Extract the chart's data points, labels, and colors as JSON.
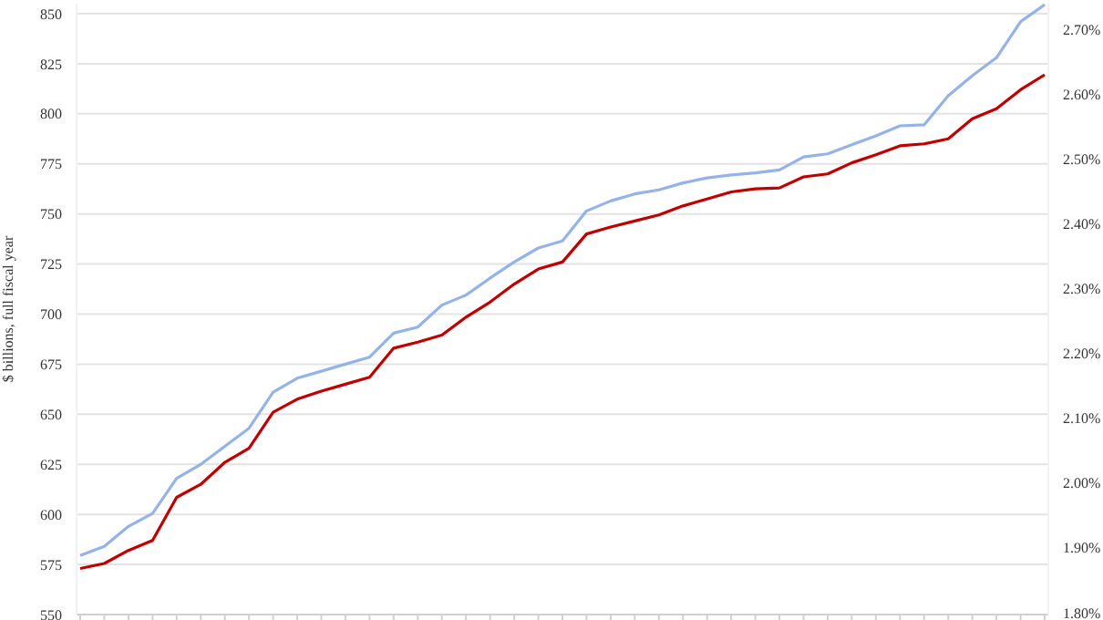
{
  "chart_data": {
    "type": "line",
    "ylabel": "$ billions, full fiscal year",
    "categories": [
      null,
      null,
      null,
      null,
      null,
      null,
      null,
      null,
      null,
      null,
      null,
      null,
      null,
      null,
      null,
      null,
      null,
      null,
      null,
      null,
      null,
      null,
      null,
      null,
      null,
      null,
      null,
      null,
      null,
      null,
      null,
      null,
      null,
      null,
      null,
      null,
      null,
      null,
      null,
      null,
      null
    ],
    "series": [
      {
        "color": "#95b3e6",
        "values": [
          579.5,
          584,
          594,
          600.5,
          618,
          625,
          634,
          643,
          661,
          668,
          671.5,
          675,
          678.5,
          690.5,
          693.5,
          704.5,
          709.5,
          718,
          726,
          733,
          736.5,
          751.5,
          756.5,
          760,
          762,
          765.5,
          768,
          769.5,
          770.5,
          772,
          778.5,
          780,
          784.5,
          789,
          794,
          794.5,
          809,
          819,
          828,
          846,
          854.5
        ]
      },
      {
        "color": "#c00000",
        "values": [
          573,
          575.5,
          582,
          587,
          608.5,
          615,
          626,
          633,
          651,
          657.5,
          661.5,
          665,
          668.5,
          683,
          686,
          689.5,
          698.5,
          706,
          715,
          722.5,
          726,
          740,
          743.5,
          746.5,
          749.5,
          754,
          757.5,
          761,
          762.5,
          763,
          768.5,
          770,
          775.5,
          779.5,
          784,
          785,
          787.5,
          797.5,
          802.5,
          812,
          819.5
        ]
      }
    ],
    "ylim": [
      550,
      855
    ],
    "yticks": [
      550,
      575,
      600,
      625,
      650,
      675,
      700,
      725,
      750,
      775,
      800,
      825,
      850
    ],
    "y2lim": [
      1.797,
      2.74
    ],
    "y2ticks": [
      {
        "value": 1.8,
        "label": "1.80%"
      },
      {
        "value": 1.9,
        "label": "1.90%"
      },
      {
        "value": 2.0,
        "label": "2.00%"
      },
      {
        "value": 2.1,
        "label": "2.10%"
      },
      {
        "value": 2.2,
        "label": "2.20%"
      },
      {
        "value": 2.3,
        "label": "2.30%"
      },
      {
        "value": 2.4,
        "label": "2.40%"
      },
      {
        "value": 2.5,
        "label": "2.50%"
      },
      {
        "value": 2.6,
        "label": "2.60%"
      },
      {
        "value": 2.7,
        "label": "2.70%"
      }
    ],
    "grid": "y",
    "marker": "none",
    "line_style": "solid",
    "tick_labels": "y"
  }
}
